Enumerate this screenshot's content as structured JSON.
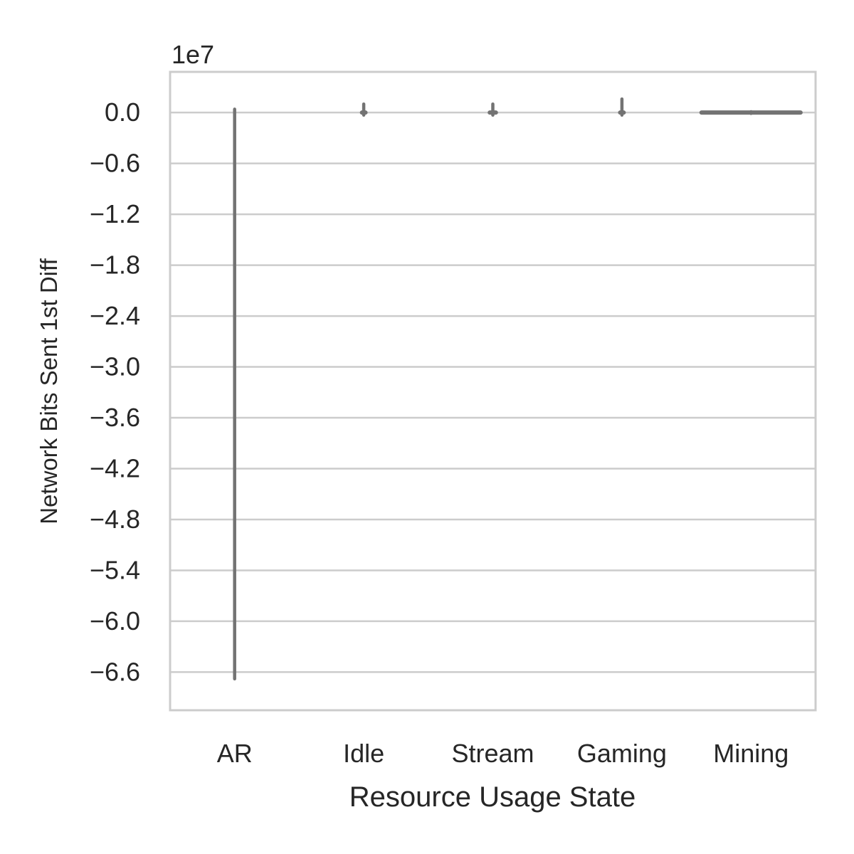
{
  "chart_data": {
    "type": "violin",
    "title": "",
    "xlabel": "Resource Usage State",
    "ylabel": "Network Bits Sent 1st Diff",
    "y_offset_label": "1e7",
    "y_scale_factor": 10000000,
    "categories": [
      "AR",
      "Idle",
      "Stream",
      "Gaming",
      "Mining"
    ],
    "yticks": [
      0.0,
      -0.6,
      -1.2,
      -1.8,
      -2.4,
      -3.0,
      -3.6,
      -4.2,
      -4.8,
      -5.4,
      -6.0,
      -6.6
    ],
    "ytick_labels": [
      "0.0",
      "−0.6",
      "−1.2",
      "−1.8",
      "−2.4",
      "−3.0",
      "−3.6",
      "−4.2",
      "−4.8",
      "−5.4",
      "−6.0",
      "−6.6"
    ],
    "ylim": [
      -7.05,
      0.48
    ],
    "series": [
      {
        "category": "AR",
        "min": -6.68,
        "max": 0.04,
        "body_halfwidth": 0.02
      },
      {
        "category": "Idle",
        "min": -0.03,
        "max": 0.1,
        "body_halfwidth": 0.06
      },
      {
        "category": "Stream",
        "min": -0.03,
        "max": 0.1,
        "body_halfwidth": 0.08
      },
      {
        "category": "Gaming",
        "min": -0.03,
        "max": 0.16,
        "body_halfwidth": 0.06
      },
      {
        "category": "Mining",
        "min": -0.01,
        "max": 0.01,
        "body_halfwidth": 0.8
      }
    ],
    "grid": true,
    "legend": "none",
    "colors": {
      "violin": "#737373",
      "grid": "#cccccc",
      "spine": "#cccccc",
      "text": "#262626"
    }
  }
}
